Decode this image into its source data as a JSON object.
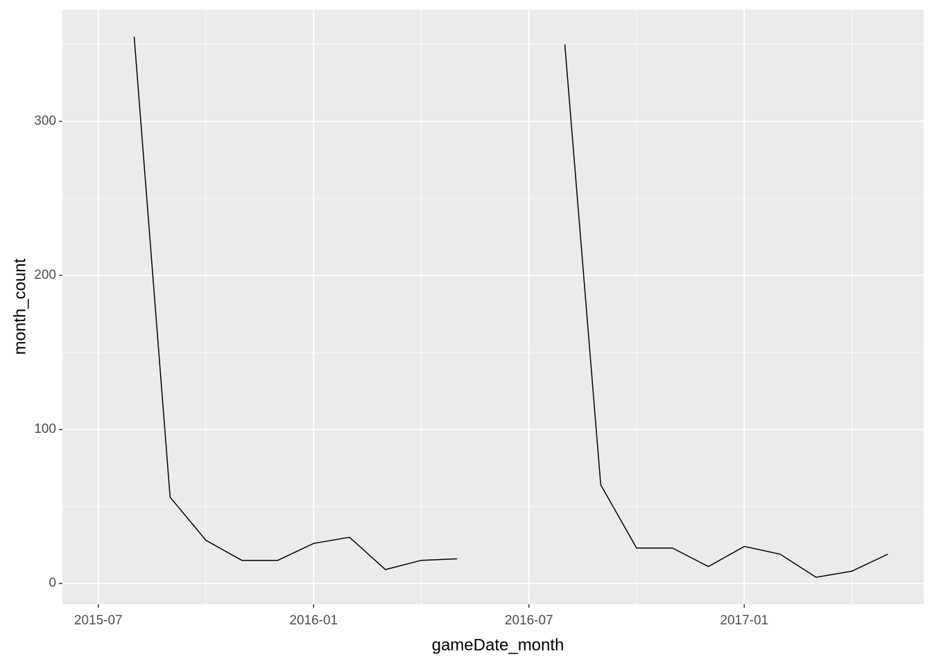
{
  "chart_data": {
    "type": "line",
    "x_label": "gameDate_month",
    "y_label": "month_count",
    "x": [
      "2015-08",
      "2015-09",
      "2015-10",
      "2015-11",
      "2015-12",
      "2016-01",
      "2016-02",
      "2016-03",
      "2016-04",
      "2016-05",
      "2016-06",
      "2016-07",
      "2016-08",
      "2016-09",
      "2016-10",
      "2016-11",
      "2016-12",
      "2017-01",
      "2017-02",
      "2017-03",
      "2017-04",
      "2017-05"
    ],
    "series": [
      {
        "name": "month_count",
        "color": "#000000",
        "values": [
          355,
          56,
          28,
          15,
          15,
          26,
          30,
          9,
          15,
          16,
          null,
          null,
          350,
          64,
          23,
          23,
          11,
          24,
          19,
          4,
          8,
          19
        ]
      }
    ],
    "xlim": [
      "2015-06",
      "2017-06"
    ],
    "xticks": [
      "2015-07",
      "2016-01",
      "2016-07",
      "2017-01"
    ],
    "x_minor_ticks": [
      "2015-10",
      "2016-04",
      "2016-10",
      "2017-04"
    ],
    "ylim": [
      -13.5,
      372.5
    ],
    "yticks": [
      0,
      100,
      200,
      300
    ],
    "y_minor_ticks": [
      50,
      150,
      250,
      350
    ],
    "grid": true
  }
}
